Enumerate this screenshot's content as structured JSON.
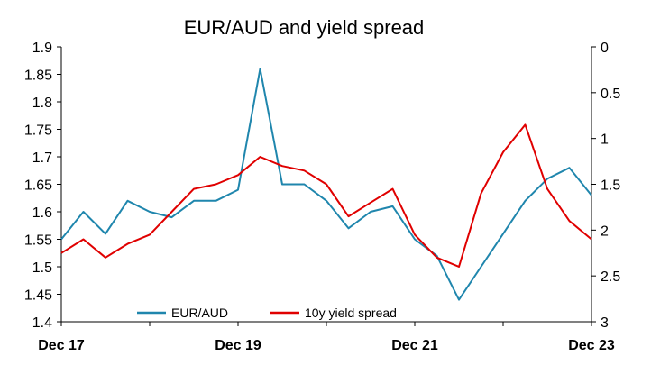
{
  "chart_data": {
    "type": "line",
    "title": "EUR/AUD and yield spread",
    "xlabel": "",
    "ylabel": "",
    "y2label": "",
    "x_tick_labels": [
      "Dec 17",
      "Dec 19",
      "Dec 21",
      "Dec 23"
    ],
    "y_left_ticks": [
      "1.9",
      "1.85",
      "1.8",
      "1.75",
      "1.7",
      "1.65",
      "1.6",
      "1.55",
      "1.5",
      "1.45",
      "1.4"
    ],
    "y_right_ticks": [
      "0",
      "0.5",
      "1",
      "1.5",
      "2",
      "2.5",
      "3"
    ],
    "ylim_left": [
      1.4,
      1.9
    ],
    "ylim_right": [
      0,
      3
    ],
    "right_axis_inverted": true,
    "grid": false,
    "legend_position": "bottom",
    "x": [
      "Dec 17",
      "Mar 18",
      "Jun 18",
      "Sep 18",
      "Dec 18",
      "Mar 19",
      "Jun 19",
      "Sep 19",
      "Dec 19",
      "Mar 20",
      "Jun 20",
      "Sep 20",
      "Dec 20",
      "Mar 21",
      "Jun 21",
      "Sep 21",
      "Dec 21",
      "Mar 22",
      "Jun 22",
      "Sep 22",
      "Dec 22",
      "Mar 23",
      "Jun 23",
      "Sep 23",
      "Dec 23"
    ],
    "series": [
      {
        "name": "EUR/AUD",
        "axis": "left",
        "color": "#1f86ad",
        "values": [
          1.55,
          1.6,
          1.56,
          1.62,
          1.6,
          1.59,
          1.62,
          1.62,
          1.64,
          1.86,
          1.65,
          1.65,
          1.62,
          1.57,
          1.6,
          1.61,
          1.55,
          1.52,
          1.44,
          1.5,
          1.56,
          1.62,
          1.66,
          1.68,
          1.63
        ]
      },
      {
        "name": "10y yield spread",
        "axis": "right",
        "color": "#e00000",
        "values": [
          2.25,
          2.1,
          2.3,
          2.15,
          2.05,
          1.8,
          1.55,
          1.5,
          1.4,
          1.2,
          1.3,
          1.35,
          1.5,
          1.85,
          1.7,
          1.55,
          2.05,
          2.3,
          2.4,
          1.6,
          1.15,
          0.85,
          1.55,
          1.9,
          2.1
        ]
      }
    ]
  }
}
